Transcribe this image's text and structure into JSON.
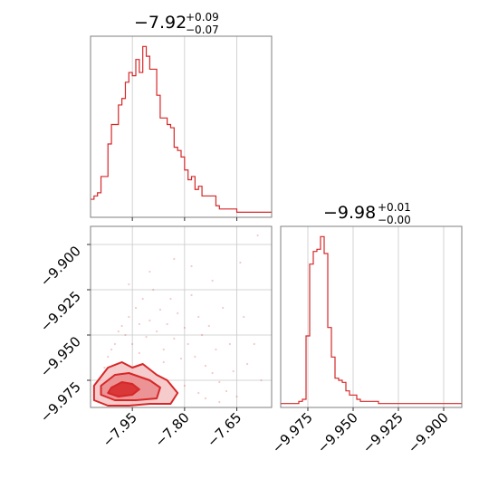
{
  "colors": {
    "accent": "#d62728",
    "fill_light": "#f4c2c3",
    "fill_mid": "#ea8a8b",
    "grid": "#c8c8c8",
    "frame": "#7f7f7f"
  },
  "chart_data": [
    {
      "type": "histogram",
      "panel": "top-left",
      "title_main": "−7.92",
      "title_sup": "+0.09",
      "title_sub": "−0.07",
      "xlim": [
        -8.07,
        -7.55
      ],
      "x_ticks": [
        -7.95,
        -7.8,
        -7.65
      ],
      "bin_edges_start": -8.07,
      "bin_width": 0.01,
      "counts": [
        5,
        6,
        7,
        12,
        12,
        22,
        28,
        28,
        34,
        36,
        41,
        44,
        43,
        48,
        44,
        52,
        49,
        45,
        45,
        37,
        30,
        30,
        28,
        27,
        21,
        20,
        18,
        14,
        11,
        12,
        8,
        9,
        6,
        6,
        6,
        6,
        3,
        2,
        2,
        2,
        2,
        2,
        1,
        1,
        1,
        1,
        1,
        1,
        1,
        1,
        1,
        1
      ]
    },
    {
      "type": "histogram",
      "panel": "bottom-right",
      "title_main": "−9.98",
      "title_sup": "+0.01",
      "title_sub": "−0.00",
      "xlim": [
        -9.99,
        -9.89
      ],
      "x_ticks": [
        -9.975,
        -9.95,
        -9.925,
        -9.9
      ],
      "x_ticklabels": [
        "−9.975",
        "−9.950",
        "−9.925",
        "−9.900"
      ],
      "bin_edges_start": -9.99,
      "bin_width": 0.002,
      "counts": [
        1,
        1,
        1,
        1,
        1,
        2,
        3,
        33,
        67,
        73,
        74,
        80,
        72,
        37,
        23,
        13,
        12,
        11,
        7,
        5,
        5,
        3,
        2,
        2,
        2,
        2,
        2,
        1,
        1,
        1,
        1,
        1,
        1,
        1,
        1,
        1,
        1,
        1,
        1,
        1,
        1,
        1,
        1,
        1,
        1,
        1,
        1,
        1,
        1,
        1
      ]
    },
    {
      "type": "scatter-contour",
      "panel": "bottom-left",
      "xlim": [
        -8.07,
        -7.55
      ],
      "ylim": [
        -9.99,
        -9.89
      ],
      "x_ticks": [
        -7.95,
        -7.8,
        -7.65
      ],
      "x_ticklabels": [
        "−7.95",
        "−7.80",
        "−7.65"
      ],
      "y_ticks": [
        -9.9,
        -9.925,
        -9.95,
        -9.975
      ],
      "y_ticklabels": [
        "−9.900",
        "−9.925",
        "−9.950",
        "−9.975"
      ],
      "contour_levels": [
        [
          [
            -8.06,
            -9.978
          ],
          [
            -8.02,
            -9.968
          ],
          [
            -7.98,
            -9.965
          ],
          [
            -7.95,
            -9.968
          ],
          [
            -7.92,
            -9.966
          ],
          [
            -7.88,
            -9.972
          ],
          [
            -7.85,
            -9.975
          ],
          [
            -7.82,
            -9.982
          ],
          [
            -7.84,
            -9.988
          ],
          [
            -7.9,
            -9.988
          ],
          [
            -7.96,
            -9.989
          ],
          [
            -8.02,
            -9.989
          ],
          [
            -8.06,
            -9.986
          ]
        ],
        [
          [
            -8.04,
            -9.978
          ],
          [
            -8.0,
            -9.972
          ],
          [
            -7.96,
            -9.971
          ],
          [
            -7.93,
            -9.973
          ],
          [
            -7.9,
            -9.975
          ],
          [
            -7.87,
            -9.979
          ],
          [
            -7.88,
            -9.985
          ],
          [
            -7.94,
            -9.986
          ],
          [
            -8.0,
            -9.986
          ],
          [
            -8.04,
            -9.983
          ]
        ],
        [
          [
            -8.01,
            -9.979
          ],
          [
            -7.98,
            -9.976
          ],
          [
            -7.95,
            -9.977
          ],
          [
            -7.93,
            -9.98
          ],
          [
            -7.95,
            -9.983
          ],
          [
            -7.99,
            -9.984
          ],
          [
            -8.02,
            -9.982
          ]
        ]
      ],
      "points": [
        [
          -8.05,
          -9.985
        ],
        [
          -8.04,
          -9.975
        ],
        [
          -8.03,
          -9.968
        ],
        [
          -8.02,
          -9.962
        ],
        [
          -8.01,
          -9.958
        ],
        [
          -8.0,
          -9.955
        ],
        [
          -7.99,
          -9.948
        ],
        [
          -7.98,
          -9.945
        ],
        [
          -7.97,
          -9.95
        ],
        [
          -7.96,
          -9.94
        ],
        [
          -7.95,
          -9.955
        ],
        [
          -7.94,
          -9.935
        ],
        [
          -7.93,
          -9.944
        ],
        [
          -7.92,
          -9.93
        ],
        [
          -7.91,
          -9.951
        ],
        [
          -7.9,
          -9.942
        ],
        [
          -7.89,
          -9.925
        ],
        [
          -7.88,
          -9.948
        ],
        [
          -7.87,
          -9.936
        ],
        [
          -7.86,
          -9.958
        ],
        [
          -7.85,
          -9.944
        ],
        [
          -7.84,
          -9.93
        ],
        [
          -7.83,
          -9.952
        ],
        [
          -7.82,
          -9.938
        ],
        [
          -7.81,
          -9.963
        ],
        [
          -7.8,
          -9.946
        ],
        [
          -7.79,
          -9.955
        ],
        [
          -7.78,
          -9.928
        ],
        [
          -7.77,
          -9.962
        ],
        [
          -7.76,
          -9.94
        ],
        [
          -7.75,
          -9.95
        ],
        [
          -7.74,
          -9.967
        ],
        [
          -7.73,
          -9.945
        ],
        [
          -7.72,
          -9.971
        ],
        [
          -7.71,
          -9.958
        ],
        [
          -7.7,
          -9.976
        ],
        [
          -7.69,
          -9.935
        ],
        [
          -7.68,
          -9.981
        ],
        [
          -7.67,
          -9.955
        ],
        [
          -7.66,
          -9.97
        ],
        [
          -7.64,
          -9.91
        ],
        [
          -7.63,
          -9.94
        ],
        [
          -7.62,
          -9.966
        ],
        [
          -7.6,
          -9.955
        ],
        [
          -7.58,
          -9.975
        ],
        [
          -7.59,
          -9.895
        ],
        [
          -7.83,
          -9.908
        ],
        [
          -7.78,
          -9.912
        ],
        [
          -7.9,
          -9.915
        ],
        [
          -7.72,
          -9.92
        ],
        [
          -7.96,
          -9.922
        ],
        [
          -7.86,
          -9.965
        ],
        [
          -7.93,
          -9.96
        ],
        [
          -8.0,
          -9.968
        ],
        [
          -7.97,
          -9.972
        ],
        [
          -7.8,
          -9.978
        ],
        [
          -7.76,
          -9.982
        ],
        [
          -7.74,
          -9.985
        ],
        [
          -7.7,
          -9.987
        ],
        [
          -7.65,
          -9.984
        ]
      ]
    }
  ]
}
